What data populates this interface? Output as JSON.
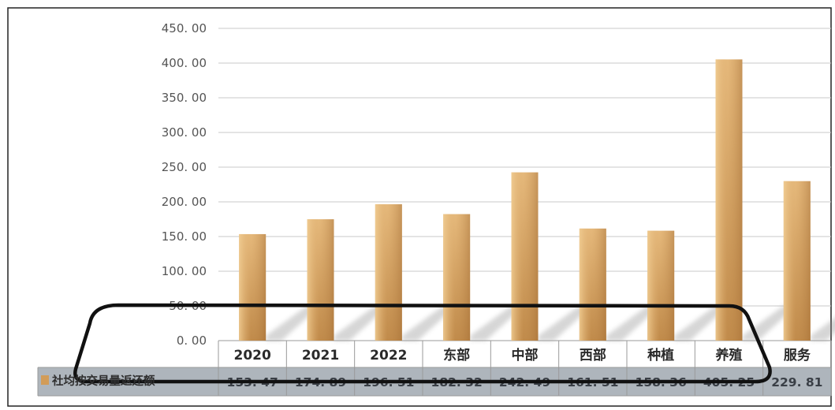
{
  "chart_data": {
    "type": "bar",
    "categories": [
      "2020",
      "2021",
      "2022",
      "东部",
      "中部",
      "西部",
      "种植",
      "养殖",
      "服务"
    ],
    "series": [
      {
        "name": "社均按交易量返还额",
        "values": [
          153.47,
          174.89,
          196.51,
          182.32,
          242.49,
          161.51,
          158.36,
          405.25,
          229.81
        ]
      }
    ],
    "value_labels": [
      "153. 47",
      "174. 89",
      "196. 51",
      "182. 32",
      "242. 49",
      "161. 51",
      "158. 36",
      "405. 25",
      "229. 81"
    ],
    "ylim": [
      0,
      450
    ],
    "yticks": [
      0,
      50,
      100,
      150,
      200,
      250,
      300,
      350,
      400,
      450
    ],
    "ytick_labels": [
      "0. 00",
      "50. 00",
      "100. 00",
      "150. 00",
      "200. 00",
      "250. 00",
      "300. 00",
      "350. 00",
      "400. 00",
      "450. 00"
    ],
    "grid": true,
    "legend": "data-table-left",
    "title": "",
    "xlabel": "",
    "ylabel": "",
    "colors": {
      "bar_light": "#E6BA7C",
      "bar_dark": "#BC8646",
      "grid": "#C8C8C8",
      "table_border": "#9A9A9A",
      "value_row_bg": "#AEB5BC",
      "frame": "#2A2A2A"
    }
  }
}
